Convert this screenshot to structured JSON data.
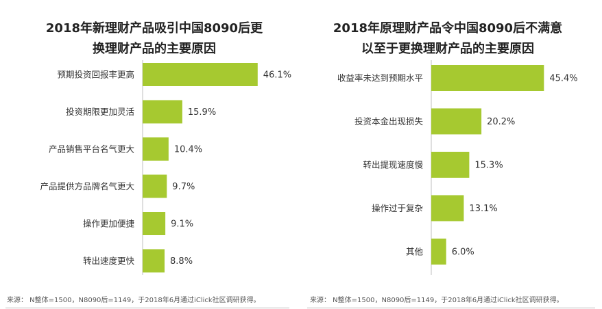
{
  "accent_color": "#a6c930",
  "chart_data": [
    {
      "type": "bar",
      "orientation": "horizontal",
      "title_lines": [
        "2018年新理财产品吸引中国8090后更",
        "换理财产品的主要原因"
      ],
      "categories": [
        "预期投资回报率更高",
        "投资期限更加灵活",
        "产品销售平台名气更大",
        "产品提供方品牌名气更大",
        "操作更加便捷",
        "转出速度更快"
      ],
      "values": [
        46.1,
        15.9,
        10.4,
        9.7,
        9.1,
        8.8
      ],
      "value_labels": [
        "46.1%",
        "15.9%",
        "10.4%",
        "9.7%",
        "9.1%",
        "8.8%"
      ],
      "unit": "%",
      "xlim": [
        0,
        50
      ],
      "source": "来源： N整体=1500，N8090后=1149，于2018年6月通过iClick社区调研获得。"
    },
    {
      "type": "bar",
      "orientation": "horizontal",
      "title_lines": [
        "2018年原理财产品令中国8090后不满意",
        "以至于更换理财产品的主要原因"
      ],
      "categories": [
        "收益率未达到预期水平",
        "投资本金出现损失",
        "转出提现速度慢",
        "操作过于复杂",
        "其他"
      ],
      "values": [
        45.4,
        20.2,
        15.3,
        13.1,
        6.0
      ],
      "value_labels": [
        "45.4%",
        "20.2%",
        "15.3%",
        "13.1%",
        "6.0%"
      ],
      "unit": "%",
      "xlim": [
        0,
        50
      ],
      "source": "来源： N整体=1500，N8090后=1149，于2018年6月通过iClick社区调研获得。"
    }
  ]
}
